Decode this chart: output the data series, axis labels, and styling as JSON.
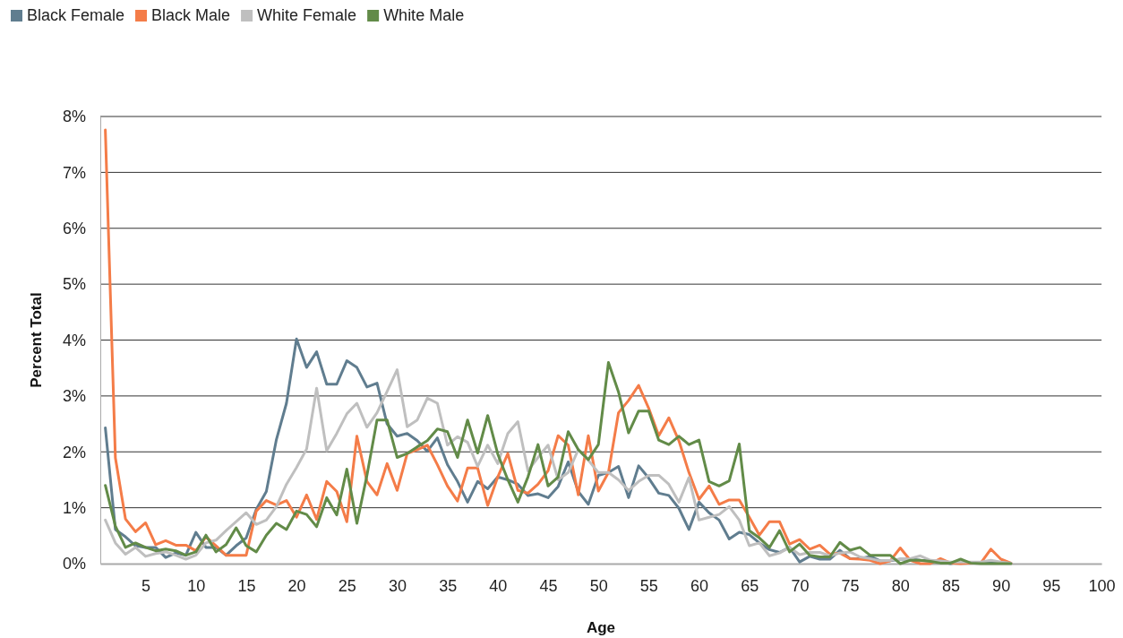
{
  "chart_data": {
    "type": "line",
    "xlabel": "Age",
    "ylabel": "Percent Total",
    "x": [
      1,
      2,
      3,
      4,
      5,
      6,
      7,
      8,
      9,
      10,
      11,
      12,
      13,
      14,
      15,
      16,
      17,
      18,
      19,
      20,
      21,
      22,
      23,
      24,
      25,
      26,
      27,
      28,
      29,
      30,
      31,
      32,
      33,
      34,
      35,
      36,
      37,
      38,
      39,
      40,
      41,
      42,
      43,
      44,
      45,
      46,
      47,
      48,
      49,
      50,
      51,
      52,
      53,
      54,
      55,
      56,
      57,
      58,
      59,
      60,
      61,
      62,
      63,
      64,
      65,
      66,
      67,
      68,
      69,
      70,
      71,
      72,
      73,
      74,
      75,
      76,
      77,
      78,
      79,
      80,
      81,
      82,
      83,
      84,
      85,
      86,
      87,
      88,
      89,
      90,
      91
    ],
    "series": [
      {
        "name": "Black Female",
        "color": "#607d8f",
        "values": [
          2.43,
          0.61,
          0.48,
          0.32,
          0.29,
          0.29,
          0.11,
          0.19,
          0.15,
          0.56,
          0.29,
          0.29,
          0.15,
          0.32,
          0.46,
          0.97,
          1.29,
          2.22,
          2.87,
          4.02,
          3.51,
          3.79,
          3.21,
          3.21,
          3.63,
          3.51,
          3.16,
          3.23,
          2.5,
          2.28,
          2.33,
          2.2,
          2.01,
          2.25,
          1.77,
          1.47,
          1.1,
          1.47,
          1.34,
          1.55,
          1.5,
          1.42,
          1.22,
          1.25,
          1.18,
          1.38,
          1.82,
          1.29,
          1.06,
          1.58,
          1.63,
          1.74,
          1.18,
          1.75,
          1.53,
          1.26,
          1.22,
          0.99,
          0.61,
          1.1,
          0.91,
          0.78,
          0.44,
          0.56,
          0.52,
          0.37,
          0.25,
          0.2,
          0.29,
          0.03,
          0.13,
          0.08,
          0.08,
          0.24,
          0.09,
          0.09,
          0.13,
          0.05,
          0.05,
          0.08,
          0.08,
          0.06,
          0.05,
          0.03,
          0,
          0.03,
          0.01,
          0.01,
          0.01,
          0.01,
          0.01
        ]
      },
      {
        "name": "Black Male",
        "color": "#f47c48",
        "values": [
          7.76,
          1.89,
          0.8,
          0.57,
          0.73,
          0.34,
          0.41,
          0.33,
          0.33,
          0.23,
          0.48,
          0.32,
          0.15,
          0.15,
          0.15,
          0.94,
          1.13,
          1.05,
          1.13,
          0.83,
          1.23,
          0.79,
          1.47,
          1.29,
          0.75,
          2.28,
          1.47,
          1.23,
          1.79,
          1.31,
          1.97,
          2.04,
          2.12,
          1.77,
          1.39,
          1.12,
          1.71,
          1.71,
          1.04,
          1.55,
          1.97,
          1.31,
          1.26,
          1.42,
          1.66,
          2.29,
          2.12,
          1.23,
          2.29,
          1.3,
          1.63,
          2.7,
          2.92,
          3.19,
          2.78,
          2.29,
          2.61,
          2.2,
          1.63,
          1.15,
          1.39,
          1.06,
          1.14,
          1.14,
          0.83,
          0.51,
          0.75,
          0.75,
          0.35,
          0.43,
          0.26,
          0.33,
          0.17,
          0.19,
          0.09,
          0.08,
          0.06,
          0,
          0.05,
          0.28,
          0.06,
          0,
          0,
          0.09,
          0.01,
          0,
          0.01,
          0.01,
          0.26,
          0.08,
          0.01
        ]
      },
      {
        "name": "White Female",
        "color": "#bfbfbf",
        "values": [
          0.78,
          0.37,
          0.17,
          0.29,
          0.13,
          0.18,
          0.21,
          0.15,
          0.08,
          0.15,
          0.37,
          0.42,
          0.59,
          0.75,
          0.91,
          0.7,
          0.78,
          1.02,
          1.42,
          1.72,
          2.05,
          3.14,
          2.02,
          2.33,
          2.68,
          2.87,
          2.44,
          2.7,
          3.08,
          3.47,
          2.45,
          2.57,
          2.96,
          2.87,
          2.12,
          2.27,
          2.17,
          1.74,
          2.12,
          1.79,
          2.33,
          2.54,
          1.66,
          1.9,
          2.12,
          1.5,
          1.63,
          2.04,
          1.85,
          1.63,
          1.63,
          1.5,
          1.31,
          1.47,
          1.58,
          1.58,
          1.42,
          1.1,
          1.54,
          0.78,
          0.83,
          0.88,
          1.02,
          0.78,
          0.32,
          0.37,
          0.14,
          0.19,
          0.29,
          0.16,
          0.2,
          0.2,
          0.14,
          0.19,
          0.21,
          0.12,
          0.09,
          0.05,
          0.06,
          0.08,
          0.09,
          0.14,
          0.06,
          0.05,
          0.03,
          0.03,
          0.03,
          0.03,
          0.06,
          0.03,
          0.01
        ]
      },
      {
        "name": "White Male",
        "color": "#628b48",
        "values": [
          1.4,
          0.67,
          0.29,
          0.37,
          0.29,
          0.23,
          0.26,
          0.23,
          0.15,
          0.21,
          0.51,
          0.21,
          0.34,
          0.64,
          0.32,
          0.21,
          0.51,
          0.72,
          0.61,
          0.94,
          0.88,
          0.66,
          1.18,
          0.87,
          1.69,
          0.72,
          1.58,
          2.57,
          2.57,
          1.9,
          1.97,
          2.09,
          2.2,
          2.41,
          2.36,
          1.9,
          2.57,
          1.98,
          2.65,
          1.96,
          1.5,
          1.1,
          1.55,
          2.13,
          1.39,
          1.55,
          2.36,
          2.04,
          1.86,
          2.13,
          3.6,
          3.07,
          2.34,
          2.73,
          2.73,
          2.21,
          2.13,
          2.28,
          2.13,
          2.21,
          1.47,
          1.39,
          1.48,
          2.14,
          0.59,
          0.46,
          0.29,
          0.59,
          0.21,
          0.35,
          0.15,
          0.12,
          0.12,
          0.38,
          0.24,
          0.29,
          0.15,
          0.15,
          0.15,
          0,
          0.06,
          0.06,
          0.04,
          0.01,
          0.01,
          0.08,
          0.01,
          0,
          0,
          0,
          0
        ]
      }
    ],
    "xlim": [
      0.5,
      100
    ],
    "xticks": [
      5,
      10,
      15,
      20,
      25,
      30,
      35,
      40,
      45,
      50,
      55,
      60,
      65,
      70,
      75,
      80,
      85,
      90,
      95,
      100
    ],
    "ylim": [
      0,
      8
    ],
    "yticks": [
      {
        "value": 0,
        "label": "0%"
      },
      {
        "value": 1,
        "label": "1%"
      },
      {
        "value": 2,
        "label": "2%"
      },
      {
        "value": 3,
        "label": "3%"
      },
      {
        "value": 4,
        "label": "4%"
      },
      {
        "value": 5,
        "label": "5%"
      },
      {
        "value": 6,
        "label": "6%"
      },
      {
        "value": 7,
        "label": "7%"
      },
      {
        "value": 8,
        "label": "8%"
      }
    ],
    "grid": "y",
    "legend": "top left",
    "marker": "none",
    "line_style": "solid"
  }
}
